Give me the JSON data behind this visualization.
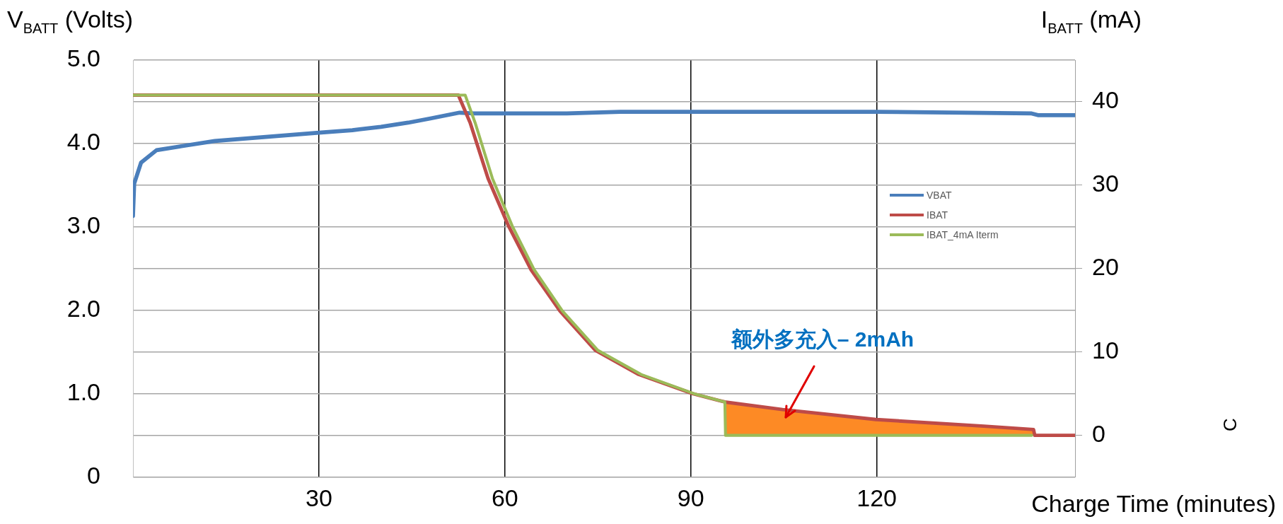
{
  "chart_data": {
    "type": "line",
    "ylabel": "V$_{BATT}$ (Volts)",
    "y2label": "I$_{BATT}$ (mA)",
    "xlabel": "Charge Time (minutes)",
    "xlim": [
      0,
      152
    ],
    "xticks": [
      30,
      60,
      90,
      120
    ],
    "ylim": [
      0,
      5
    ],
    "yticks": [
      0,
      {
        "value": 0.5,
        "label": null
      },
      {
        "value": 1,
        "label": "1.0"
      },
      {
        "value": 1.5,
        "label": null
      },
      {
        "value": 2,
        "label": "2.0"
      },
      {
        "value": 2.5,
        "label": null
      },
      {
        "value": 3,
        "label": "3.0"
      },
      {
        "value": 3.5,
        "label": null
      },
      {
        "value": 4,
        "label": "4.0"
      },
      {
        "value": 4.5,
        "label": null
      },
      {
        "value": 5,
        "label": "5.0"
      }
    ],
    "y2lim": [
      -5,
      45
    ],
    "y2ticks": [
      0,
      10,
      20,
      30,
      40
    ],
    "grid": true,
    "legend": "right",
    "series": [
      {
        "name": "VBAT",
        "color": "#4a7ebb",
        "x": [
          0,
          0.2,
          1.3,
          3.8,
          8,
          13.2,
          20,
          25,
          30,
          35.4,
          40,
          44.4,
          48,
          52.7,
          55,
          60,
          70,
          78.6,
          90,
          120,
          145,
          146,
          152
        ],
        "values": [
          3.13,
          3.52,
          3.77,
          3.92,
          3.97,
          4.03,
          4.07,
          4.1,
          4.13,
          4.16,
          4.2,
          4.25,
          4.3,
          4.37,
          4.36,
          4.36,
          4.36,
          4.38,
          4.38,
          4.38,
          4.36,
          4.34,
          4.34
        ]
      },
      {
        "name": "IBAT",
        "color": "#be4b48",
        "axis": "y2",
        "x": [
          0,
          52.5,
          54.4,
          57.3,
          60.6,
          64.2,
          68.9,
          74.6,
          81.6,
          90.3,
          95.5,
          104.8,
          119.9,
          137.3,
          145.3,
          145.5,
          152
        ],
        "values": [
          40.8,
          40.8,
          37.5,
          30.8,
          25.1,
          19.9,
          14.9,
          10.2,
          7.3,
          5.0,
          4.0,
          3.1,
          1.9,
          1.1,
          0.7,
          0,
          0
        ]
      },
      {
        "name": "IBAT_4mA Iterm",
        "color": "#9bbb59",
        "axis": "y2",
        "x": [
          0,
          53.6,
          55.2,
          58,
          61.2,
          64.7,
          69.3,
          75,
          82,
          90.5,
          95.5,
          95.6,
          145
        ],
        "values": [
          40.8,
          40.8,
          37.5,
          30.8,
          25.1,
          19.9,
          14.9,
          10.2,
          7.3,
          5.0,
          4.0,
          0,
          0
        ]
      },
      {
        "type": "area",
        "color": "#fd8a25",
        "axis": "y2",
        "x": [
          95.5,
          104.8,
          119.9,
          137.3,
          145.3
        ],
        "values": [
          4.0,
          3.1,
          1.9,
          1.1,
          0.7
        ]
      }
    ],
    "annotations": [
      "额外多充入– 2mAh",
      "C"
    ]
  }
}
